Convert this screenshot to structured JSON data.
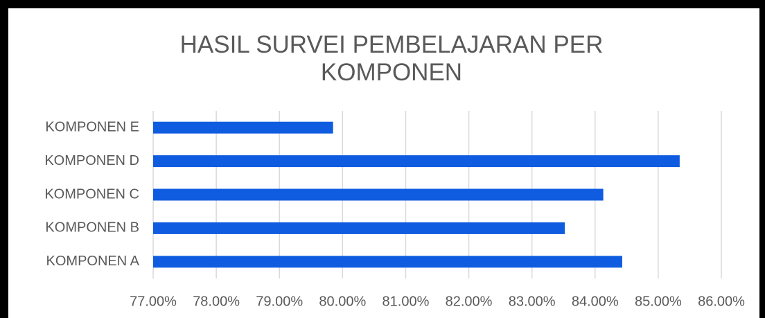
{
  "chart_data": {
    "type": "barh",
    "title": "HASIL SURVEI PEMBELAJARAN PER KOMPONEN",
    "categories": [
      "KOMPONEN A",
      "KOMPONEN B",
      "KOMPONEN C",
      "KOMPONEN D",
      "KOMPONEN E"
    ],
    "values": [
      84.43,
      83.52,
      84.13,
      85.34,
      79.85
    ],
    "color": "#0f5ce0",
    "xlim": [
      77,
      86
    ],
    "xticks": [
      {
        "value": 77,
        "label": "77.00%"
      },
      {
        "value": 78,
        "label": "78.00%"
      },
      {
        "value": 79,
        "label": "79.00%"
      },
      {
        "value": 80,
        "label": "80.00%"
      },
      {
        "value": 81,
        "label": "81.00%"
      },
      {
        "value": 82,
        "label": "82.00%"
      },
      {
        "value": 83,
        "label": "83.00%"
      },
      {
        "value": 84,
        "label": "84.00%"
      },
      {
        "value": 85,
        "label": "85.00%"
      },
      {
        "value": 86,
        "label": "86.00%"
      }
    ],
    "grid": true
  }
}
